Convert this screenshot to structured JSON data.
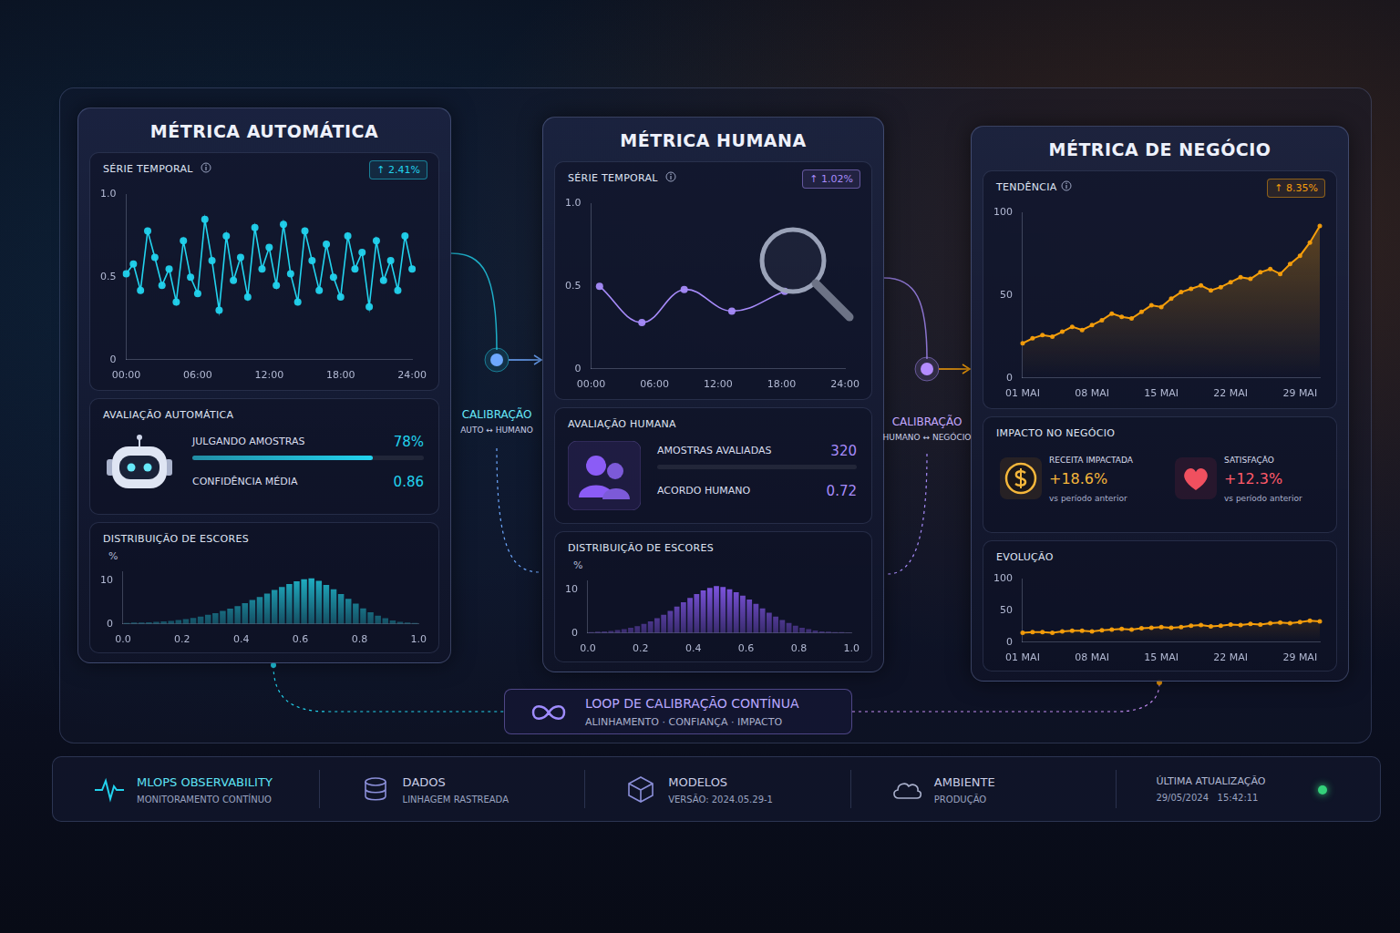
{
  "panels": [
    {
      "title": "MÉTRICA AUTOMÁTICA",
      "section": "AVALIAÇÃO AUTOMÁTICA",
      "stats": [
        {
          "label": "JULGANDO AMOSTRAS",
          "value": 78,
          "value_label": "78%"
        },
        {
          "label": "CONFIDÊNCIA MÉDIA",
          "value": 0.86
        }
      ]
    },
    {
      "title": "MÉTRICA HUMANA",
      "section": "AVALIAÇÃO HUMANA",
      "stats": [
        {
          "label": "AMOSTRAS AVALIADAS",
          "value": 320
        },
        {
          "label": "ACORDO HUMANO",
          "value": 0.72
        }
      ]
    },
    {
      "title": "MÉTRICA DE NEGÓCIO",
      "section": "IMPACTO NO NEGÓCIO",
      "stats": [
        {
          "label": "RECEITA IMPACTADA",
          "value": 18.6,
          "value_label": "+18.6%",
          "note": "vs período anterior"
        },
        {
          "label": "SATISFAÇÃO",
          "value": 12.3,
          "value_label": "+12.3%",
          "note": "vs período anterior"
        }
      ]
    }
  ],
  "links": [
    {
      "title": "CALIBRAÇÃO",
      "subtitle": "AUTO ↔ HUMANO"
    },
    {
      "title": "CALIBRAÇÃO",
      "subtitle": "HUMANO ↔ NEGÓCIO"
    }
  ],
  "loop": {
    "title": "LOOP DE CALIBRAÇÃO CONTÍNUA",
    "subtitle": "ALINHAMENTO · CONFIANÇA · IMPACTO"
  },
  "footer": [
    {
      "title": "MLOPS OBSERVABILITY",
      "subtitle": "MONITORAMENTO CONTÍNUO"
    },
    {
      "title": "DADOS",
      "subtitle": "LINHAGEM RASTREADA"
    },
    {
      "title": "MODELOS",
      "subtitle": "VERSÃO: 2024.05.29-1"
    },
    {
      "title": "AMBIENTE",
      "subtitle": "PRODUÇÃO"
    },
    {
      "title": "ÚLTIMA ATUALIZAÇÃO",
      "subtitle": "29/05/2024   15:42:11"
    }
  ],
  "chart_data": [
    {
      "type": "line",
      "title": "SÉRIE TEMPORAL",
      "annotations": [
        "↑ 2.41%"
      ],
      "categories": [
        "00:00",
        null,
        null,
        null,
        null,
        null,
        null,
        null,
        null,
        null,
        "06:00",
        null,
        null,
        null,
        null,
        null,
        null,
        null,
        null,
        null,
        "12:00",
        null,
        null,
        null,
        null,
        null,
        null,
        null,
        null,
        null,
        "18:00",
        null,
        null,
        null,
        null,
        null,
        null,
        null,
        null,
        null,
        "24:00"
      ],
      "values": [
        0.52,
        0.58,
        0.42,
        0.78,
        0.62,
        0.45,
        0.55,
        0.35,
        0.72,
        0.5,
        0.4,
        0.85,
        0.6,
        0.3,
        0.75,
        0.48,
        0.62,
        0.38,
        0.8,
        0.55,
        0.68,
        0.45,
        0.82,
        0.52,
        0.35,
        0.78,
        0.6,
        0.42,
        0.7,
        0.5,
        0.38,
        0.75,
        0.55,
        0.65,
        0.32,
        0.72,
        0.48,
        0.6,
        0.42,
        0.75,
        0.55
      ],
      "color": "#22d3ee",
      "marker": "circle",
      "line_style": "solid",
      "ylim": [
        0,
        1
      ],
      "yticks": [
        0,
        0.5,
        {
          "value": 1,
          "label": "1.0"
        }
      ],
      "grid": false
    },
    {
      "type": "histogram",
      "title": "DISTRIBUIÇÃO DE ESCORES",
      "y_label": "%",
      "bins": [
        0,
        0.025,
        0.05,
        0.075,
        0.1,
        0.125,
        0.15,
        0.175,
        0.2,
        0.225,
        0.25,
        0.275,
        0.3,
        0.325,
        0.35,
        0.375,
        0.4,
        0.425,
        0.45,
        0.475,
        0.5,
        0.525,
        0.55,
        0.575,
        0.6,
        0.625,
        0.65,
        0.675,
        0.7,
        0.725,
        0.75,
        0.775,
        0.8,
        0.825,
        0.85,
        0.875,
        0.9,
        0.925,
        0.95,
        0.975,
        1
      ],
      "values": [
        0.2,
        0.3,
        0.3,
        0.4,
        0.5,
        0.6,
        0.7,
        0.9,
        1.1,
        1.4,
        1.7,
        2.1,
        2.5,
        3.0,
        3.5,
        4.1,
        4.8,
        5.5,
        6.2,
        7.0,
        7.8,
        8.5,
        9.2,
        9.8,
        10.3,
        10.5,
        9.9,
        9.0,
        8.0,
        6.9,
        5.8,
        4.7,
        3.6,
        2.7,
        1.9,
        1.3,
        0.8,
        0.5,
        0.3,
        0.2
      ],
      "color": "#22c4d8",
      "xlim": [
        0,
        1
      ],
      "xticks": [
        {
          "value": 0,
          "label": "0.0"
        },
        0.2,
        0.4,
        0.6,
        0.8,
        {
          "value": 1,
          "label": "1.0"
        }
      ],
      "ylim": [
        0,
        12
      ],
      "yticks": [
        0,
        10
      ],
      "grid": false
    },
    {
      "type": "line",
      "title": "SÉRIE TEMPORAL",
      "annotations": [
        "↑ 1.02%"
      ],
      "x": [
        0.8,
        4.8,
        8.8,
        13.3,
        18.3
      ],
      "values": [
        0.5,
        0.28,
        0.48,
        0.35,
        0.47
      ],
      "color": "#a78bfa",
      "marker": "circle",
      "line_style": "smooth",
      "xlim": [
        0,
        24
      ],
      "xticks": [
        {
          "value": 0,
          "label": "00:00"
        },
        {
          "value": 6,
          "label": "06:00"
        },
        {
          "value": 12,
          "label": "12:00"
        },
        {
          "value": 18,
          "label": "18:00"
        },
        {
          "value": 24,
          "label": "24:00"
        }
      ],
      "ylim": [
        0,
        1
      ],
      "yticks": [
        0,
        0.5,
        {
          "value": 1,
          "label": "1.0"
        }
      ],
      "grid": false
    },
    {
      "type": "histogram",
      "title": "DISTRIBUIÇÃO DE ESCORES",
      "y_label": "%",
      "bins": [
        0,
        0.025,
        0.05,
        0.075,
        0.1,
        0.125,
        0.15,
        0.175,
        0.2,
        0.225,
        0.25,
        0.275,
        0.3,
        0.325,
        0.35,
        0.375,
        0.4,
        0.425,
        0.45,
        0.475,
        0.5,
        0.525,
        0.55,
        0.575,
        0.6,
        0.625,
        0.65,
        0.675,
        0.7,
        0.725,
        0.75,
        0.775,
        0.8,
        0.825,
        0.85,
        0.875,
        0.9,
        0.925,
        0.95,
        0.975,
        1
      ],
      "values": [
        0.2,
        0.3,
        0.4,
        0.5,
        0.7,
        0.9,
        1.2,
        1.6,
        2.1,
        2.7,
        3.4,
        4.2,
        5.1,
        6.1,
        7.1,
        8.1,
        9.0,
        9.8,
        10.4,
        10.8,
        10.6,
        10.1,
        9.4,
        8.6,
        7.7,
        6.7,
        5.7,
        4.7,
        3.8,
        3.0,
        2.3,
        1.7,
        1.2,
        0.9,
        0.6,
        0.4,
        0.3,
        0.2,
        0.2,
        0.1
      ],
      "color": "#8b5cf6",
      "xlim": [
        0,
        1
      ],
      "xticks": [
        {
          "value": 0,
          "label": "0.0"
        },
        0.2,
        0.4,
        0.6,
        0.8,
        {
          "value": 1,
          "label": "1.0"
        }
      ],
      "ylim": [
        0,
        12
      ],
      "yticks": [
        0,
        10
      ],
      "grid": false
    },
    {
      "type": "area",
      "title": "TENDÊNCIA",
      "annotations": [
        "↑ 8.35%"
      ],
      "categories": [
        "01 MAI",
        null,
        null,
        null,
        null,
        null,
        null,
        "08 MAI",
        null,
        null,
        null,
        null,
        null,
        null,
        "15 MAI",
        null,
        null,
        null,
        null,
        null,
        null,
        "22 MAI",
        null,
        null,
        null,
        null,
        null,
        null,
        "29 MAI",
        null,
        null
      ],
      "values": [
        21,
        24,
        26,
        25,
        28,
        31,
        29,
        32,
        35,
        39,
        37,
        36,
        40,
        44,
        43,
        48,
        52,
        54,
        56,
        53,
        55,
        58,
        61,
        60,
        64,
        66,
        63,
        69,
        74,
        82,
        92
      ],
      "color": "#f59e0b",
      "marker": "circle",
      "line_style": "solid",
      "ylim": [
        0,
        100
      ],
      "yticks": [
        0,
        50,
        100
      ],
      "grid": false
    },
    {
      "type": "area",
      "title": "EVOLUÇÃO",
      "categories": [
        "01 MAI",
        null,
        null,
        null,
        null,
        null,
        null,
        "08 MAI",
        null,
        null,
        null,
        null,
        null,
        null,
        "15 MAI",
        null,
        null,
        null,
        null,
        null,
        null,
        "22 MAI",
        null,
        null,
        null,
        null,
        null,
        null,
        "29 MAI",
        null,
        null
      ],
      "values": [
        15,
        16,
        16,
        15,
        17,
        18,
        18,
        17,
        19,
        20,
        21,
        20,
        22,
        23,
        24,
        23,
        24,
        26,
        27,
        25,
        26,
        28,
        27,
        29,
        28,
        30,
        31,
        30,
        32,
        34,
        33
      ],
      "color": "#f59e0b",
      "marker": "circle",
      "line_style": "solid",
      "ylim": [
        0,
        100
      ],
      "yticks": [
        0,
        50,
        100
      ],
      "grid": false
    }
  ]
}
